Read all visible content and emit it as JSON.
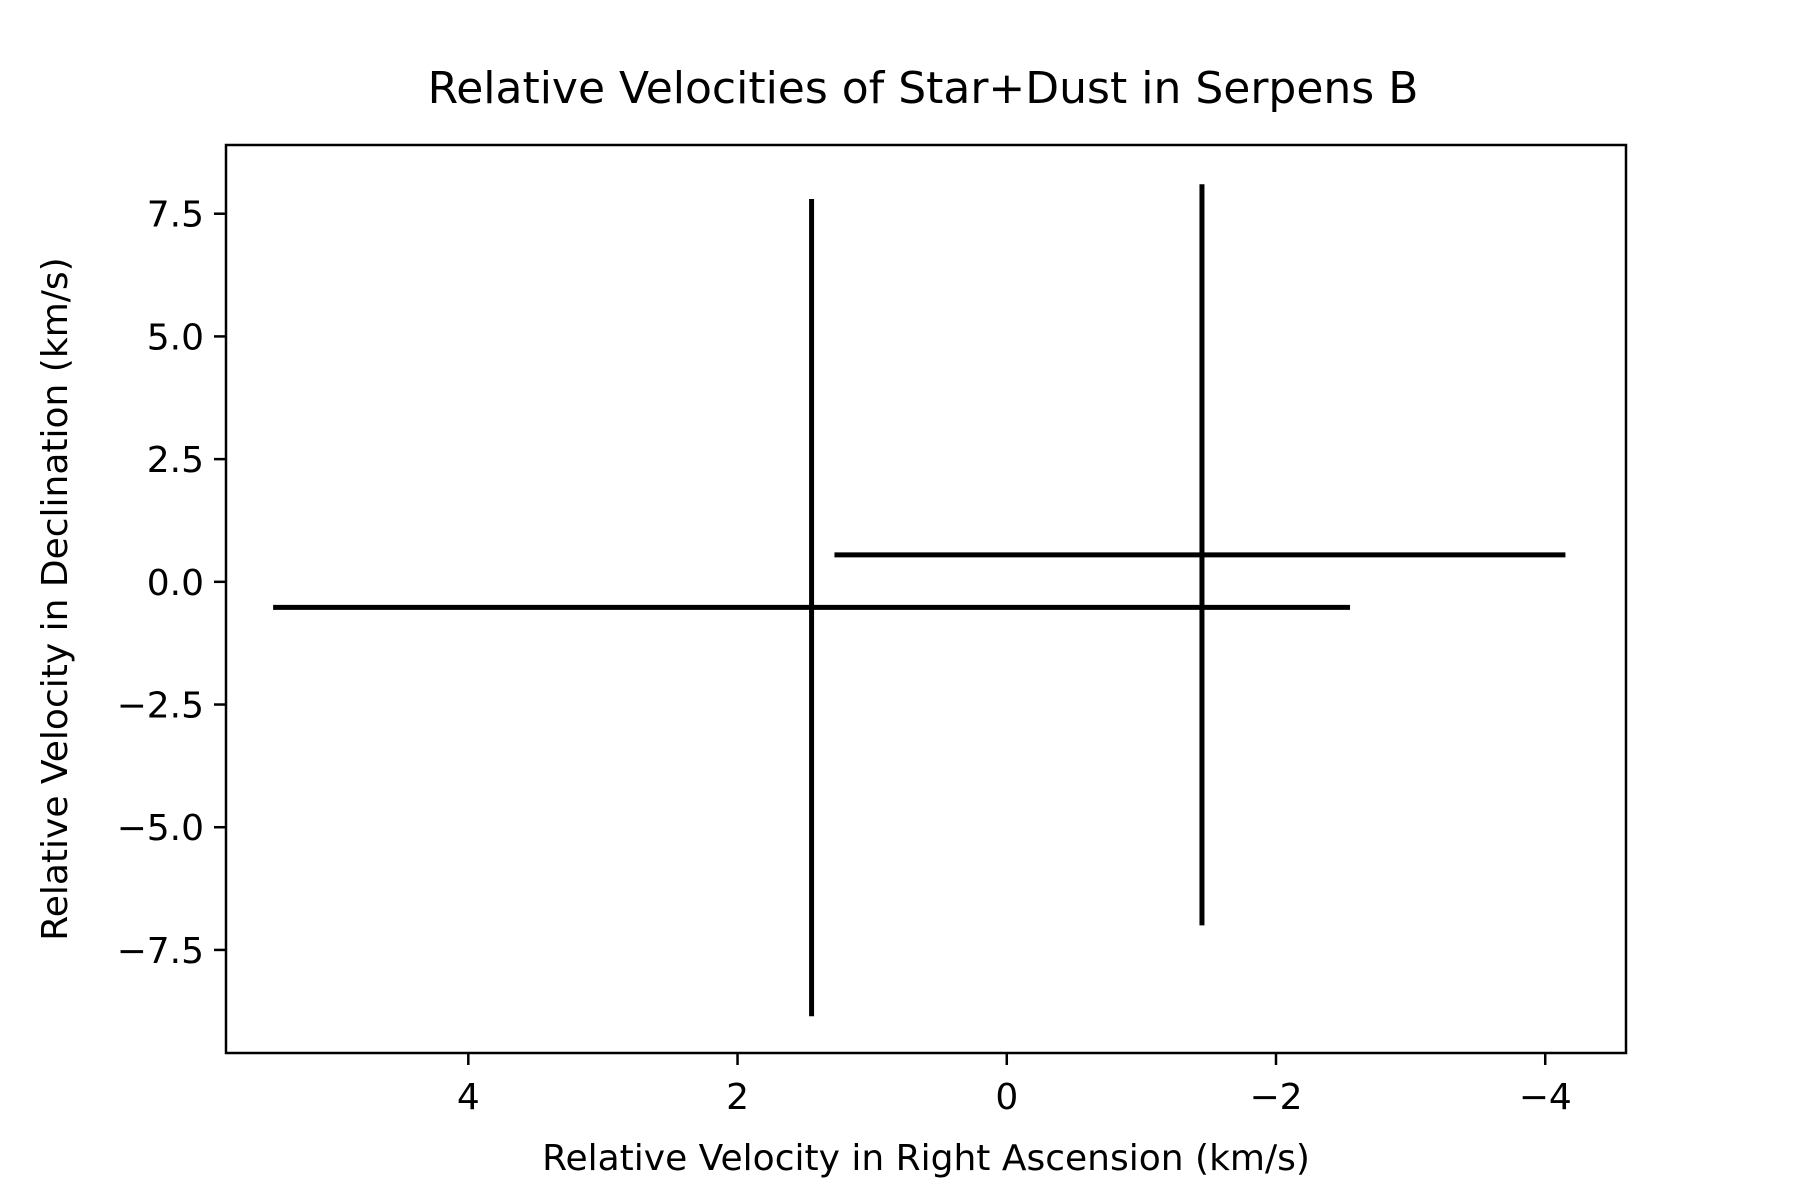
{
  "chart_data": {
    "type": "scatter",
    "title": "Relative Velocities of Star+Dust in Serpens B",
    "xlabel": "Relative Velocity in Right Ascension (km/s)",
    "ylabel": "Relative Velocity in Declination (km/s)",
    "xlim": [
      5.8,
      -4.6
    ],
    "ylim": [
      -9.6,
      8.9
    ],
    "x_inverted": true,
    "grid": false,
    "x_ticks": [
      4,
      2,
      0,
      -2,
      -4
    ],
    "x_tick_labels": [
      "4",
      "2",
      "0",
      "−2",
      "−4"
    ],
    "y_ticks": [
      7.5,
      5.0,
      2.5,
      0.0,
      -2.5,
      -5.0,
      -7.5
    ],
    "y_tick_labels": [
      "7.5",
      "5.0",
      "2.5",
      "0.0",
      "−2.5",
      "−5.0",
      "−7.5"
    ],
    "series": [
      {
        "x": 1.45,
        "y": -0.52,
        "x_range": [
          -2.55,
          5.45
        ],
        "y_range": [
          -8.85,
          7.8
        ],
        "color": "#000000"
      },
      {
        "x": -1.45,
        "y": 0.55,
        "x_range": [
          -4.15,
          1.28
        ],
        "y_range": [
          -7.0,
          8.1
        ],
        "color": "#000000"
      }
    ]
  }
}
